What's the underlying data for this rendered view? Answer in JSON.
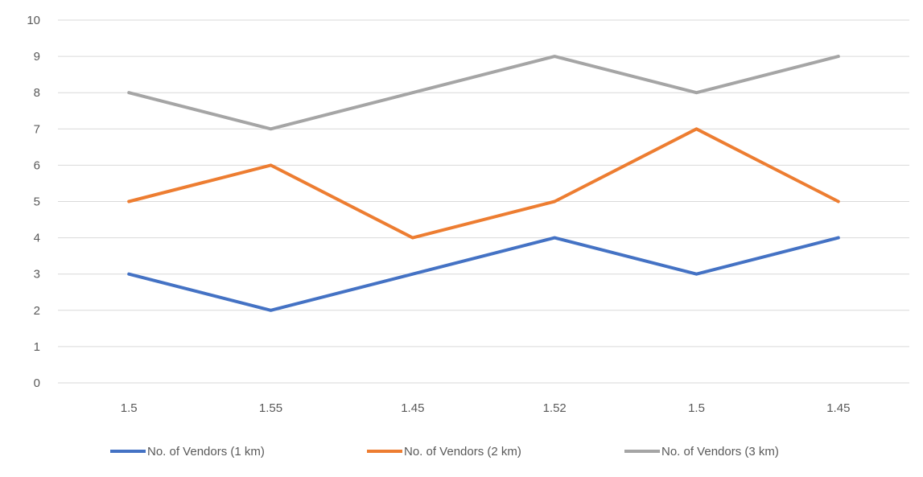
{
  "chart_data": {
    "type": "line",
    "categories": [
      "1.5",
      "1.55",
      "1.45",
      "1.52",
      "1.5",
      "1.45"
    ],
    "series": [
      {
        "name": "No. of Vendors (1 km)",
        "values": [
          3,
          2,
          3,
          4,
          3,
          4
        ],
        "color": "#4472c4"
      },
      {
        "name": "No. of Vendors (2 km)",
        "values": [
          5,
          6,
          4,
          5,
          7,
          5
        ],
        "color": "#ed7d31"
      },
      {
        "name": "No. of Vendors (3 km)",
        "values": [
          8,
          7,
          8,
          9,
          8,
          9
        ],
        "color": "#a5a5a5"
      }
    ],
    "yticks": [
      "0",
      "1",
      "2",
      "3",
      "4",
      "5",
      "6",
      "7",
      "8",
      "9",
      "10"
    ],
    "ylim": [
      0,
      10
    ],
    "grid": true,
    "legend_position": "bottom"
  }
}
